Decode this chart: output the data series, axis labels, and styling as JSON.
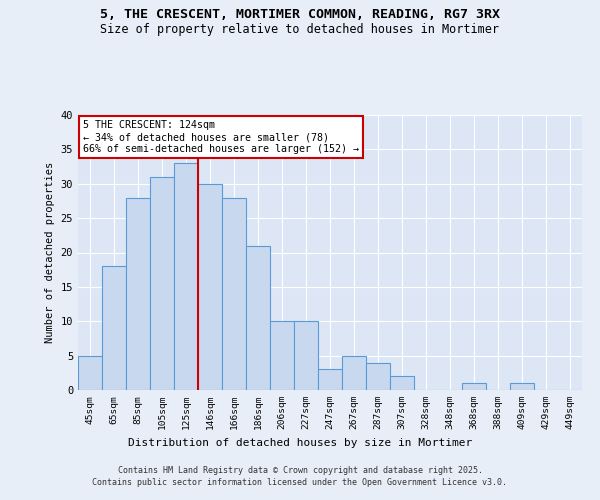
{
  "title1": "5, THE CRESCENT, MORTIMER COMMON, READING, RG7 3RX",
  "title2": "Size of property relative to detached houses in Mortimer",
  "xlabel": "Distribution of detached houses by size in Mortimer",
  "ylabel": "Number of detached properties",
  "categories": [
    "45sqm",
    "65sqm",
    "85sqm",
    "105sqm",
    "125sqm",
    "146sqm",
    "166sqm",
    "186sqm",
    "206sqm",
    "227sqm",
    "247sqm",
    "267sqm",
    "287sqm",
    "307sqm",
    "328sqm",
    "348sqm",
    "368sqm",
    "388sqm",
    "409sqm",
    "429sqm",
    "449sqm"
  ],
  "values": [
    5,
    18,
    28,
    31,
    33,
    30,
    28,
    21,
    10,
    10,
    3,
    5,
    4,
    2,
    0,
    0,
    1,
    0,
    1,
    0,
    0
  ],
  "bar_color": "#c8d9ef",
  "bar_edge_color": "#5b9bd5",
  "background_color": "#e8eef7",
  "plot_bg_color": "#dce6f5",
  "grid_color": "#ffffff",
  "vline_x_index": 4.5,
  "vline_color": "#cc0000",
  "annotation_line1": "5 THE CRESCENT: 124sqm",
  "annotation_line2": "← 34% of detached houses are smaller (78)",
  "annotation_line3": "66% of semi-detached houses are larger (152) →",
  "annotation_box_color": "#ffffff",
  "annotation_box_edge": "#cc0000",
  "ylim": [
    0,
    40
  ],
  "yticks": [
    0,
    5,
    10,
    15,
    20,
    25,
    30,
    35,
    40
  ],
  "footer1": "Contains HM Land Registry data © Crown copyright and database right 2025.",
  "footer2": "Contains public sector information licensed under the Open Government Licence v3.0."
}
